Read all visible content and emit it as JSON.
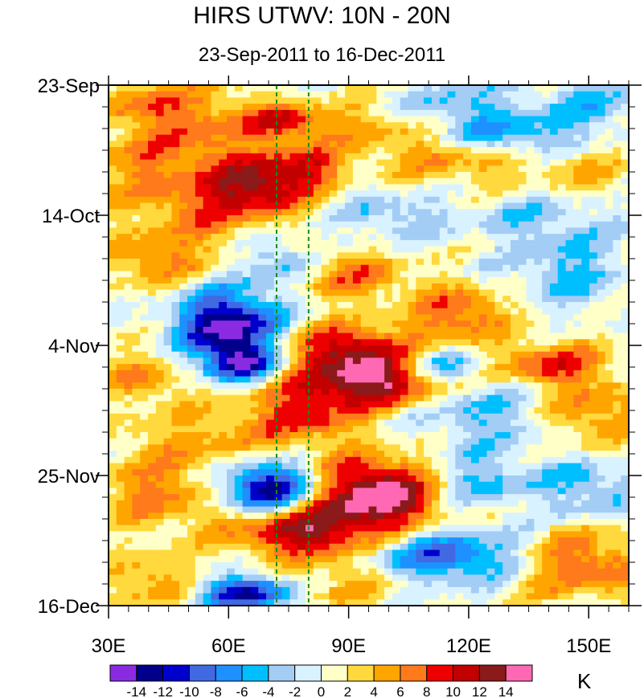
{
  "title": "HIRS UTWV: 10N - 20N",
  "subtitle": "23-Sep-2011 to 16-Dec-2011",
  "chart_data": {
    "type": "heatmap",
    "description_axis_x": "longitude",
    "description_axis_y": "time (top = earliest)",
    "xlim": [
      30,
      160
    ],
    "xticks": [
      {
        "value": 30,
        "label": "30E"
      },
      {
        "value": 60,
        "label": "60E"
      },
      {
        "value": 90,
        "label": "90E"
      },
      {
        "value": 120,
        "label": "120E"
      },
      {
        "value": 150,
        "label": "150E"
      }
    ],
    "xminor_step": 5,
    "ylim_days": [
      0,
      84
    ],
    "yticks": [
      {
        "value": 0,
        "label": "23-Sep"
      },
      {
        "value": 21,
        "label": "14-Oct"
      },
      {
        "value": 42,
        "label": "4-Nov"
      },
      {
        "value": 63,
        "label": "25-Nov"
      },
      {
        "value": 84,
        "label": "16-Dec"
      }
    ],
    "yminor_step": 3.5,
    "reference_lines_lon": [
      72,
      80
    ],
    "reference_line_color": "#1a8a1a",
    "levels": [
      -14,
      -12,
      -10,
      -8,
      -6,
      -4,
      -2,
      0,
      2,
      4,
      6,
      8,
      10,
      12,
      14
    ],
    "colors": [
      "#8a2be2",
      "#00008b",
      "#0000cd",
      "#4169e1",
      "#1e90ff",
      "#00bfff",
      "#a3cdf5",
      "#d9f2ff",
      "#ffffc8",
      "#ffd93d",
      "#ffa500",
      "#ff7a1a",
      "#ee0000",
      "#c20000",
      "#8b1a1a",
      "#ff69b4"
    ],
    "colorbar_labels": [
      "-14",
      "-12",
      "-10",
      "-8",
      "-6",
      "-4",
      "-2",
      "0",
      "2",
      "4",
      "6",
      "8",
      "10",
      "12",
      "14"
    ],
    "units": "K",
    "background_value": 0.5,
    "features": [
      {
        "lon": 38,
        "day": 3,
        "amp": 5,
        "slon": 8,
        "sday": 3
      },
      {
        "lon": 55,
        "day": 5,
        "amp": 4,
        "slon": 10,
        "sday": 4
      },
      {
        "lon": 75,
        "day": 6,
        "amp": 9,
        "slon": 7,
        "sday": 2
      },
      {
        "lon": 92,
        "day": 6,
        "amp": 3,
        "slon": 6,
        "sday": 3
      },
      {
        "lon": 118,
        "day": 3,
        "amp": -5,
        "slon": 10,
        "sday": 2.5
      },
      {
        "lon": 150,
        "day": 3,
        "amp": -5,
        "slon": 10,
        "sday": 2.5
      },
      {
        "lon": 132,
        "day": 8,
        "amp": -7,
        "slon": 12,
        "sday": 2
      },
      {
        "lon": 104,
        "day": 9,
        "amp": 3,
        "slon": 8,
        "sday": 3
      },
      {
        "lon": 45,
        "day": 13,
        "amp": 6,
        "slon": 15,
        "sday": 5
      },
      {
        "lon": 68,
        "day": 16,
        "amp": 10,
        "slon": 9,
        "sday": 3
      },
      {
        "lon": 80,
        "day": 13,
        "amp": 7,
        "slon": 7,
        "sday": 2.5
      },
      {
        "lon": 118,
        "day": 13,
        "amp": 4,
        "slon": 12,
        "sday": 3
      },
      {
        "lon": 150,
        "day": 15,
        "amp": 3,
        "slon": 10,
        "sday": 4
      },
      {
        "lon": 57,
        "day": 21,
        "amp": 5,
        "slon": 12,
        "sday": 3
      },
      {
        "lon": 100,
        "day": 21,
        "amp": -4,
        "slon": 10,
        "sday": 3
      },
      {
        "lon": 140,
        "day": 21,
        "amp": -4,
        "slon": 14,
        "sday": 3
      },
      {
        "lon": 42,
        "day": 28,
        "amp": 6,
        "slon": 10,
        "sday": 3
      },
      {
        "lon": 72,
        "day": 28,
        "amp": -5,
        "slon": 6,
        "sday": 3
      },
      {
        "lon": 92,
        "day": 31,
        "amp": 6,
        "slon": 10,
        "sday": 3
      },
      {
        "lon": 145,
        "day": 30,
        "amp": -5,
        "slon": 10,
        "sday": 4
      },
      {
        "lon": 60,
        "day": 39,
        "amp": -16,
        "slon": 9,
        "sday": 4
      },
      {
        "lon": 63,
        "day": 45,
        "amp": -12,
        "slon": 6,
        "sday": 2
      },
      {
        "lon": 90,
        "day": 42,
        "amp": 9,
        "slon": 12,
        "sday": 2.5
      },
      {
        "lon": 118,
        "day": 37,
        "amp": 8,
        "slon": 8,
        "sday": 3
      },
      {
        "lon": 140,
        "day": 45,
        "amp": 8,
        "slon": 10,
        "sday": 2.5
      },
      {
        "lon": 110,
        "day": 45,
        "amp": -9,
        "slon": 9,
        "sday": 2
      },
      {
        "lon": 98,
        "day": 47,
        "amp": 15,
        "slon": 11,
        "sday": 3
      },
      {
        "lon": 38,
        "day": 47,
        "amp": 5,
        "slon": 8,
        "sday": 3
      },
      {
        "lon": 80,
        "day": 52,
        "amp": 8,
        "slon": 10,
        "sday": 4
      },
      {
        "lon": 125,
        "day": 53,
        "amp": -5,
        "slon": 12,
        "sday": 4
      },
      {
        "lon": 150,
        "day": 53,
        "amp": 6,
        "slon": 10,
        "sday": 4
      },
      {
        "lon": 55,
        "day": 57,
        "amp": 4,
        "slon": 15,
        "sday": 4
      },
      {
        "lon": 70,
        "day": 65,
        "amp": -15,
        "slon": 8,
        "sday": 3
      },
      {
        "lon": 98,
        "day": 66,
        "amp": 16,
        "slon": 11,
        "sday": 4
      },
      {
        "lon": 78,
        "day": 72,
        "amp": 12,
        "slon": 12,
        "sday": 3
      },
      {
        "lon": 120,
        "day": 64,
        "amp": -6,
        "slon": 10,
        "sday": 3
      },
      {
        "lon": 150,
        "day": 65,
        "amp": -5,
        "slon": 10,
        "sday": 4
      },
      {
        "lon": 42,
        "day": 66,
        "amp": 6,
        "slon": 10,
        "sday": 4
      },
      {
        "lon": 115,
        "day": 76,
        "amp": -10,
        "slon": 14,
        "sday": 3
      },
      {
        "lon": 148,
        "day": 77,
        "amp": 8,
        "slon": 12,
        "sday": 4
      },
      {
        "lon": 64,
        "day": 82,
        "amp": -13,
        "slon": 8,
        "sday": 2
      },
      {
        "lon": 40,
        "day": 80,
        "amp": 5,
        "slon": 9,
        "sday": 3
      },
      {
        "lon": 90,
        "day": 80,
        "amp": 4,
        "slon": 10,
        "sday": 3
      }
    ]
  }
}
